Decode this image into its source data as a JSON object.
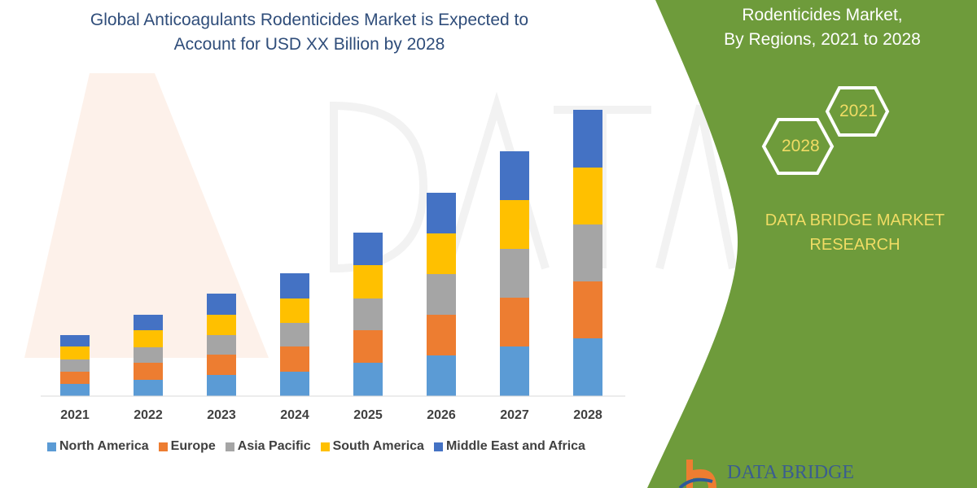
{
  "title_lines": [
    "Global Anticoagulants Rodenticides Market is Expected to",
    "Account for USD XX Billion by 2028"
  ],
  "right_panel": {
    "title_lines": [
      "Rodenticides Market,",
      "By Regions, 2021 to 2028"
    ],
    "hexagons": [
      "2021",
      "2028"
    ],
    "brand_lines": [
      "DATA BRIDGE MARKET",
      "RESEARCH"
    ],
    "logo_text": "DATA BRIDGE",
    "panel_color": "#6e9b3b"
  },
  "chart_data": {
    "type": "bar",
    "stacked": true,
    "categories": [
      "2021",
      "2022",
      "2023",
      "2024",
      "2025",
      "2026",
      "2027",
      "2028"
    ],
    "series": [
      {
        "name": "North America",
        "color": "#5b9bd5",
        "values": [
          15,
          20,
          26,
          30,
          41,
          50,
          61,
          71
        ]
      },
      {
        "name": "Europe",
        "color": "#ed7d31",
        "values": [
          15,
          21,
          25,
          31,
          40,
          50,
          60,
          70
        ]
      },
      {
        "name": "Asia Pacific",
        "color": "#a5a5a5",
        "values": [
          15,
          19,
          24,
          29,
          39,
          50,
          60,
          70
        ]
      },
      {
        "name": "South America",
        "color": "#ffc000",
        "values": [
          16,
          21,
          25,
          30,
          41,
          50,
          60,
          70
        ]
      },
      {
        "name": "Middle East and Africa",
        "color": "#4472c4",
        "values": [
          14,
          19,
          26,
          31,
          40,
          50,
          60,
          71
        ]
      }
    ],
    "y_axis_shown": false,
    "grid": false,
    "legend": "bottom"
  }
}
